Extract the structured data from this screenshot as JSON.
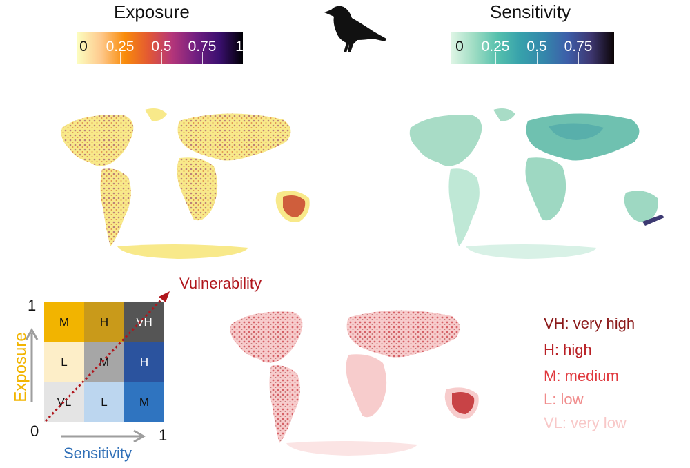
{
  "exposure": {
    "title": "Exposure",
    "ticks": [
      "0",
      "0.25",
      "0.5",
      "0.75",
      "1"
    ]
  },
  "sensitivity": {
    "title": "Sensitivity",
    "ticks": [
      "0",
      "0.25",
      "0.5",
      "0.75"
    ]
  },
  "vulnerability_label": "Vulnerability",
  "bivariate": {
    "y_max": "1",
    "origin": "0",
    "x_max": "1",
    "y_label": "Exposure",
    "x_label": "Sensitivity",
    "grid": [
      [
        "M",
        "H",
        "VH"
      ],
      [
        "L",
        "M",
        "H"
      ],
      [
        "VL",
        "L",
        "M"
      ]
    ]
  },
  "legend": [
    {
      "text": "VH: very high",
      "color": "#8b1a1a"
    },
    {
      "text": "H: high",
      "color": "#b81f24"
    },
    {
      "text": "M: medium",
      "color": "#e0393e"
    },
    {
      "text": "L: low",
      "color": "#f08b8b"
    },
    {
      "text": "VL: very low",
      "color": "#f8c8c8"
    }
  ],
  "colors": {
    "exposure_axis": "#f2b400",
    "sensitivity_axis": "#2f6fb7",
    "vulnerability": "#b0161c"
  }
}
